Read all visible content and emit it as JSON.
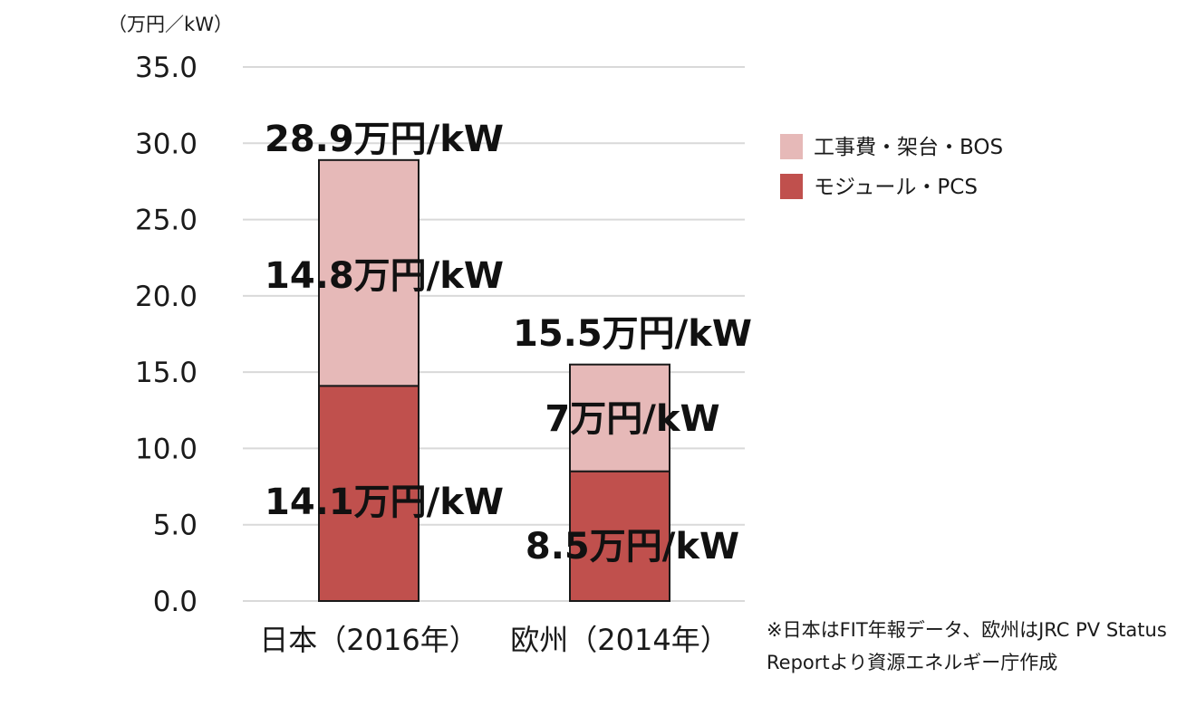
{
  "chart_data": {
    "type": "bar",
    "stacked": true,
    "unit_label": "（万円／kW）",
    "categories": [
      "日本（2016年）",
      "欧州（2014年）"
    ],
    "series": [
      {
        "name": "モジュール・PCS",
        "values": [
          14.1,
          8.5
        ],
        "labels": [
          "14.1万円/kW",
          "8.5万円/kW"
        ],
        "color": "#c0504d"
      },
      {
        "name": "工事費・架台・BOS",
        "values": [
          14.8,
          7.0
        ],
        "labels": [
          "14.8万円/kW",
          "7万円/kW"
        ],
        "color": "#e6b9b8"
      }
    ],
    "totals": [
      28.9,
      15.5
    ],
    "total_labels": [
      "28.9万円/kW",
      "15.5万円/kW"
    ],
    "ylim": [
      0,
      35
    ],
    "yticks": [
      "0.0",
      "5.0",
      "10.0",
      "15.0",
      "20.0",
      "25.0",
      "30.0",
      "35.0"
    ],
    "grid": true,
    "legend_position": "right",
    "legend": [
      "工事費・架台・BOS",
      "モジュール・PCS"
    ],
    "note_lines": [
      "※日本はFIT年報データ、欧州はJRC PV Status",
      "Reportより資源エネルギー庁作成"
    ]
  }
}
